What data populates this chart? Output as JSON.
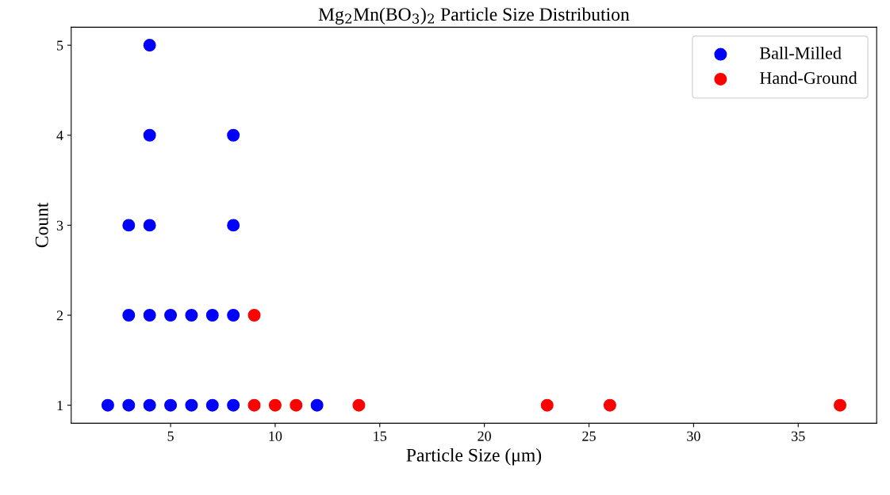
{
  "chart_data": {
    "type": "scatter",
    "title": "Mg$_{2}$Mn(BO$_{3}$)$_{2}$ Particle Size Distribution",
    "xlabel": "Particle Size (μm)",
    "ylabel": "Count",
    "series": [
      {
        "name": "Ball-Milled",
        "color": "#0000ff",
        "x": [
          2,
          3,
          4,
          5,
          6,
          7,
          8,
          12,
          3,
          4,
          5,
          6,
          7,
          8,
          3,
          4,
          8,
          4,
          8,
          4
        ],
        "values": [
          1,
          1,
          1,
          1,
          1,
          1,
          1,
          1,
          2,
          2,
          2,
          2,
          2,
          2,
          3,
          3,
          3,
          4,
          4,
          5
        ]
      },
      {
        "name": "Hand-Ground",
        "color": "#ff0000",
        "x": [
          9,
          10,
          11,
          14,
          23,
          26,
          37,
          9
        ],
        "values": [
          1,
          1,
          1,
          1,
          1,
          1,
          1,
          2
        ]
      }
    ],
    "xlim": [
      0.25,
      38.75
    ],
    "xticks": [
      5,
      10,
      15,
      20,
      25,
      30,
      35
    ],
    "ylim": [
      0.8,
      5.2
    ],
    "yticks": [
      1,
      2,
      3,
      4,
      5
    ],
    "marker": "circle",
    "legend": "top right",
    "grid": false
  }
}
